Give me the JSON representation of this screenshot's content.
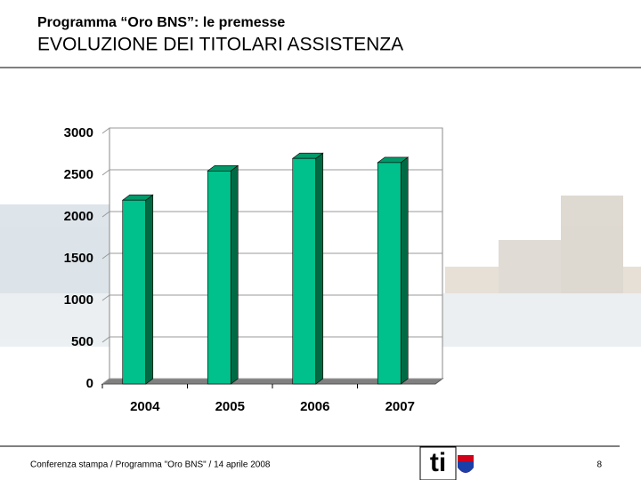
{
  "header": {
    "subtitle": "Programma “Oro BNS”: le premesse",
    "title": "EVOLUZIONE DEI TITOLARI ASSISTENZA"
  },
  "footer": {
    "text": "Conferenza stampa / Programma \"Oro BNS\" / 14 aprile 2008",
    "page": "8",
    "logo": "ti"
  },
  "chart_data": {
    "type": "bar",
    "categories": [
      "2004",
      "2005",
      "2006",
      "2007"
    ],
    "values": [
      2200,
      2550,
      2700,
      2650
    ],
    "color": "#00c08b",
    "ylim": [
      0,
      3000
    ],
    "yticks": [
      0,
      500,
      1000,
      1500,
      2000,
      2500,
      3000
    ],
    "grid": true
  }
}
